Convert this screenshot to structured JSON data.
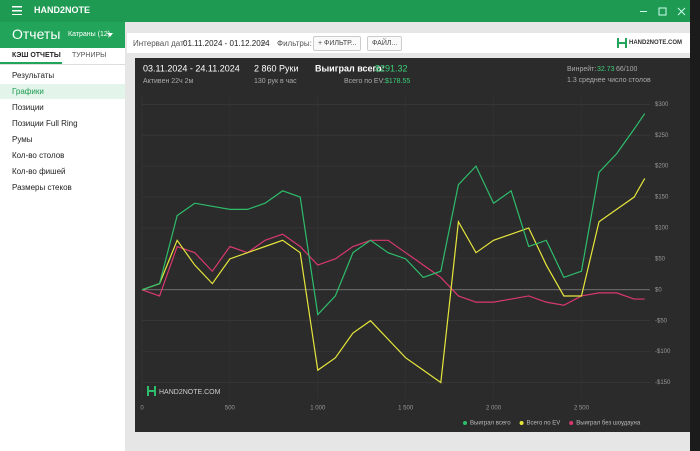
{
  "app": {
    "title": "HAND2NOTE"
  },
  "header": {
    "title": "Отчеты",
    "dropdown": "Катраны (12)"
  },
  "tabs": [
    "КЭШ ОТЧЕТЫ",
    "ТУРНИРЫ"
  ],
  "menu": [
    "Результаты",
    "Графики",
    "Позиции",
    "Позиции Full Ring",
    "Румы",
    "Кол-во столов",
    "Кол-во фишей",
    "Размеры стеков"
  ],
  "toolbar": {
    "date_label": "Интервал дат:",
    "date_range": "01.11.2024 - 01.12.2024",
    "filters_label": "Фильтры:",
    "filter_button": "+ ФИЛЬТР...",
    "file_button": "ФАЙЛ...",
    "logo": "HAND2NOTE.COM"
  },
  "summary": {
    "period": "03.11.2024 - 24.11.2024",
    "active": "Активен 22ч 2м",
    "hands": "2 860 Руки",
    "hands_per_hour": "130 рук в час",
    "won_label": "Выиграл всего:",
    "won": "$291.32",
    "ev_label": "Всего по EV:",
    "ev": "$178.55",
    "winrate_label": "Винрейт:",
    "winrate": "32.73",
    "winrate_unit": "66/100",
    "avg_tables": "1.3 среднее число столов"
  },
  "chart_data": {
    "type": "line",
    "watermark": "HAND2NOTE.COM",
    "x": [
      0,
      100,
      200,
      300,
      400,
      500,
      600,
      700,
      800,
      900,
      1000,
      1100,
      1200,
      1300,
      1400,
      1500,
      1600,
      1700,
      1800,
      1900,
      2000,
      2100,
      2200,
      2300,
      2400,
      2500,
      2600,
      2700,
      2800,
      2860
    ],
    "series": [
      {
        "name": "Выиграл всего",
        "color": "#2ebd6b",
        "values": [
          0,
          10,
          120,
          140,
          135,
          130,
          130,
          140,
          160,
          150,
          -40,
          -10,
          60,
          80,
          60,
          50,
          20,
          30,
          170,
          200,
          140,
          160,
          70,
          80,
          20,
          30,
          190,
          220,
          260,
          285
        ]
      },
      {
        "name": "Всего по EV",
        "color": "#e6e63c",
        "values": [
          0,
          10,
          80,
          40,
          10,
          50,
          60,
          70,
          80,
          60,
          -130,
          -110,
          -70,
          -50,
          -80,
          -110,
          -130,
          -150,
          110,
          60,
          80,
          90,
          100,
          40,
          -10,
          -10,
          110,
          130,
          150,
          180
        ]
      },
      {
        "name": "Выиграл без шоудауна",
        "color": "#d9386f",
        "values": [
          0,
          -10,
          70,
          60,
          30,
          70,
          60,
          80,
          90,
          70,
          40,
          50,
          70,
          80,
          80,
          60,
          40,
          20,
          -10,
          -20,
          -20,
          -15,
          -10,
          -20,
          -25,
          -10,
          -5,
          -5,
          -15,
          -15
        ]
      }
    ],
    "xlim": [
      0,
      2890
    ],
    "ylim": [
      -175,
      315
    ],
    "xticks": [
      0,
      500,
      {
        "value": 1000,
        "label": "1 000"
      },
      {
        "value": 1500,
        "label": "1 500"
      },
      {
        "value": 2000,
        "label": "2 000"
      },
      {
        "value": 2500,
        "label": "2 500"
      }
    ],
    "yticks": [
      {
        "value": -150,
        "label": "-$150"
      },
      {
        "value": -100,
        "label": "-$100"
      },
      {
        "value": -50,
        "label": "-$50"
      },
      {
        "value": 0,
        "label": "$0"
      },
      {
        "value": 50,
        "label": "$50"
      },
      {
        "value": 100,
        "label": "$100"
      },
      {
        "value": 150,
        "label": "$150"
      },
      {
        "value": 200,
        "label": "$200"
      },
      {
        "value": 250,
        "label": "$250"
      },
      {
        "value": 300,
        "label": "$300"
      }
    ],
    "grid": true
  }
}
